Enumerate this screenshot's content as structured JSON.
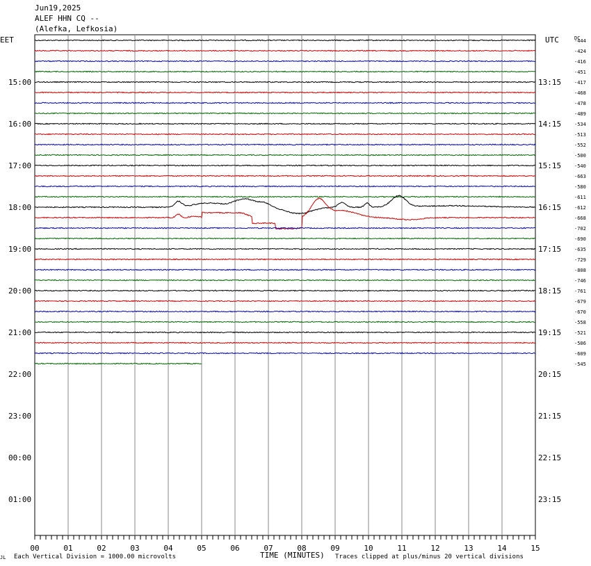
{
  "header": {
    "date": "Jun19,2025",
    "station": "ALEF HHN CQ --",
    "location": "(Alefka, Lefkosia)"
  },
  "left_zone": "EET",
  "right_zone": "UTC",
  "dc_label": "DC",
  "footer": {
    "scale": "Each Vertical Division = 1000.00 microvolts",
    "xlabel": "TIME (MINUTES)",
    "clip": "Traces clipped at plus/minus 20 vertical divisions",
    "corner": "JL"
  },
  "chart_data": {
    "type": "line",
    "title": "Jun19,2025 ALEF HHN CQ -- (Alefka, Lefkosia)",
    "xlabel": "TIME (MINUTES)",
    "xlim": [
      0,
      15
    ],
    "x_ticks": [
      "00",
      "01",
      "02",
      "03",
      "04",
      "05",
      "06",
      "07",
      "08",
      "09",
      "10",
      "11",
      "12",
      "13",
      "14",
      "15"
    ],
    "left_hour_labels": [
      "15:00",
      "16:00",
      "17:00",
      "18:00",
      "19:00",
      "20:00",
      "21:00",
      "22:00",
      "23:00",
      "00:00",
      "01:00"
    ],
    "right_hour_labels": [
      "13:15",
      "14:15",
      "15:15",
      "16:15",
      "17:15",
      "18:15",
      "19:15",
      "20:15",
      "21:15",
      "22:15",
      "23:15"
    ],
    "trace_colors": [
      "#000000",
      "#cc0000",
      "#0000cc",
      "#006600"
    ],
    "dc_offsets": [
      "-444",
      "-424",
      "-416",
      "-451",
      "-417",
      "-468",
      "-478",
      "-489",
      "-534",
      "-513",
      "-552",
      "-500",
      "-540",
      "-663",
      "-580",
      "-611",
      "-612",
      "-668",
      "-702",
      "-690",
      "-635",
      "-729",
      "-808",
      "-746",
      "-761",
      "-679",
      "-670",
      "-558",
      "-521",
      "-506",
      "-609",
      "-545"
    ],
    "traces_count": 32,
    "last_trace_end_minute": 5.0,
    "event": {
      "trace_index": 16,
      "start_minute": 3.5,
      "end_minute": 11.8,
      "description_values": {
        "peak_minutes": [
          4.3,
          6.2,
          9.2,
          9.9,
          10.9
        ]
      }
    },
    "event2": {
      "trace_index": 17,
      "start_minute": 4.2,
      "end_minute": 12.0,
      "peak_minutes": [
        8.5
      ]
    }
  }
}
